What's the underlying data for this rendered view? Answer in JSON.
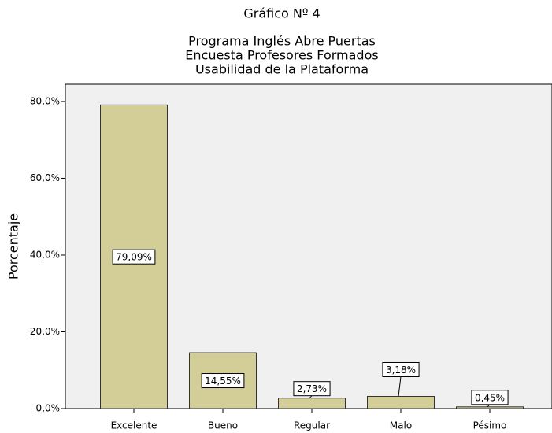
{
  "chart_data": {
    "type": "bar",
    "title": "Gráfico Nº 4",
    "subtitle": [
      "Programa Inglés Abre Puertas",
      "Encuesta Profesores Formados",
      "Usabilidad de la Plataforma"
    ],
    "y_label": "Porcentaje",
    "categories": [
      "Excelente",
      "Bueno",
      "Regular",
      "Malo",
      "Pésimo"
    ],
    "values": [
      79.09,
      14.55,
      2.73,
      3.18,
      0.45
    ],
    "value_labels": [
      "79,09%",
      "14,55%",
      "2,73%",
      "3,18%",
      "0,45%"
    ],
    "color": "#d3ce97",
    "ylim": [
      0,
      84.5
    ],
    "yticks": [
      {
        "value": 0,
        "label": "0,0%"
      },
      {
        "value": 20,
        "label": "20,0%"
      },
      {
        "value": 40,
        "label": "40,0%"
      },
      {
        "value": 60,
        "label": "60,0%"
      },
      {
        "value": 80,
        "label": "80,0%"
      }
    ]
  }
}
